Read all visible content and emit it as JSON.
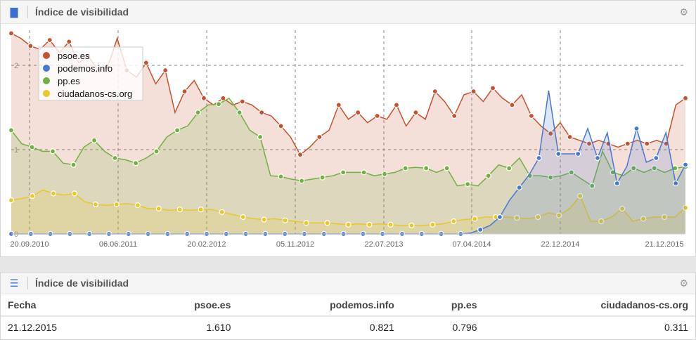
{
  "chart_panel": {
    "title": "Índice de visibilidad",
    "icon": "bar-chart-icon",
    "settings_icon": "gear-icon"
  },
  "table_panel": {
    "title": "Índice de visibilidad",
    "icon": "list-icon",
    "settings_icon": "gear-icon",
    "headers": [
      "Fecha",
      "psoe.es",
      "podemos.info",
      "pp.es",
      "ciudadanos-cs.org"
    ],
    "rows": [
      [
        "21.12.2015",
        "1.610",
        "0.821",
        "0.796",
        "0.311"
      ]
    ]
  },
  "chart_data": {
    "type": "area",
    "title": "Índice de visibilidad",
    "xlabel": "",
    "ylabel": "",
    "ylim": [
      0,
      2.45
    ],
    "yticks": [
      "0",
      "1",
      "2"
    ],
    "xticks": [
      "20.09.2010",
      "06.06.2011",
      "20.02.2012",
      "05.11.2012",
      "22.07.2013",
      "07.04.2014",
      "22.12.2014",
      "21.12.2015"
    ],
    "x_range": [
      "2010-07-29",
      "2015-12-21"
    ],
    "legend": "top-left",
    "grid": true,
    "series": [
      {
        "name": "psoe.es",
        "color": "#c8522f",
        "values": [
          2.38,
          2.32,
          2.23,
          2.19,
          2.3,
          2.15,
          2.28,
          2.03,
          2.11,
          1.94,
          1.98,
          2.32,
          1.94,
          1.86,
          2.03,
          1.78,
          1.94,
          1.44,
          1.69,
          1.82,
          1.61,
          1.53,
          1.61,
          1.53,
          1.57,
          1.53,
          1.44,
          1.4,
          1.28,
          1.15,
          0.94,
          1.03,
          1.15,
          1.23,
          1.53,
          1.36,
          1.44,
          1.32,
          1.4,
          1.36,
          1.53,
          1.28,
          1.44,
          1.36,
          1.69,
          1.57,
          1.4,
          1.65,
          1.69,
          1.57,
          1.73,
          1.61,
          1.53,
          1.65,
          1.4,
          1.28,
          1.19,
          1.32,
          1.15,
          1.11,
          1.07,
          1.11,
          1.07,
          1.03,
          1.07,
          1.11,
          1.07,
          1.11,
          1.07,
          1.53,
          1.61
        ]
      },
      {
        "name": "podemos.info",
        "color": "#4a78d0",
        "values": [
          0,
          0,
          0,
          0,
          0,
          0,
          0,
          0,
          0,
          0,
          0,
          0,
          0,
          0,
          0,
          0,
          0,
          0,
          0,
          0,
          0,
          0,
          0,
          0,
          0,
          0,
          0,
          0,
          0,
          0,
          0,
          0,
          0,
          0,
          0,
          0,
          0,
          0,
          0,
          0,
          0,
          0,
          0,
          0,
          0,
          0,
          0,
          0.01,
          0.05,
          0.1,
          0.2,
          0.4,
          0.55,
          0.7,
          0.9,
          1.7,
          0.95,
          0.95,
          0.95,
          1.25,
          0.9,
          1.2,
          0.6,
          0.8,
          1.25,
          0.85,
          0.9,
          1.2,
          0.6,
          0.821
        ]
      },
      {
        "name": "pp.es",
        "color": "#72b043",
        "values": [
          1.23,
          1.07,
          1.03,
          0.98,
          0.98,
          0.84,
          0.82,
          1.03,
          1.11,
          0.98,
          0.9,
          0.88,
          0.84,
          0.9,
          0.98,
          1.15,
          1.23,
          1.28,
          1.44,
          1.53,
          1.54,
          1.61,
          1.44,
          1.23,
          1.15,
          0.69,
          0.68,
          0.65,
          0.63,
          0.65,
          0.67,
          0.69,
          0.73,
          0.73,
          0.73,
          0.69,
          0.71,
          0.73,
          0.78,
          0.79,
          0.78,
          0.73,
          0.78,
          0.57,
          0.59,
          0.57,
          0.69,
          0.82,
          0.78,
          0.9,
          0.69,
          0.69,
          0.67,
          0.69,
          0.73,
          0.65,
          0.57,
          0.98,
          0.73,
          0.69,
          0.78,
          0.73,
          0.78,
          0.73,
          0.78,
          0.796
        ]
      },
      {
        "name": "ciudadanos-cs.org",
        "color": "#e8c72a",
        "values": [
          0.4,
          0.42,
          0.45,
          0.52,
          0.48,
          0.46,
          0.48,
          0.38,
          0.35,
          0.34,
          0.35,
          0.36,
          0.34,
          0.3,
          0.3,
          0.28,
          0.29,
          0.28,
          0.29,
          0.29,
          0.26,
          0.23,
          0.2,
          0.18,
          0.17,
          0.18,
          0.16,
          0.15,
          0.13,
          0.13,
          0.13,
          0.12,
          0.11,
          0.12,
          0.11,
          0.12,
          0.11,
          0.1,
          0.1,
          0.1,
          0.11,
          0.12,
          0.15,
          0.17,
          0.18,
          0.2,
          0.2,
          0.2,
          0.19,
          0.18,
          0.2,
          0.25,
          0.22,
          0.3,
          0.45,
          0.15,
          0.15,
          0.2,
          0.3,
          0.15,
          0.18,
          0.2,
          0.2,
          0.2,
          0.311
        ]
      }
    ]
  }
}
